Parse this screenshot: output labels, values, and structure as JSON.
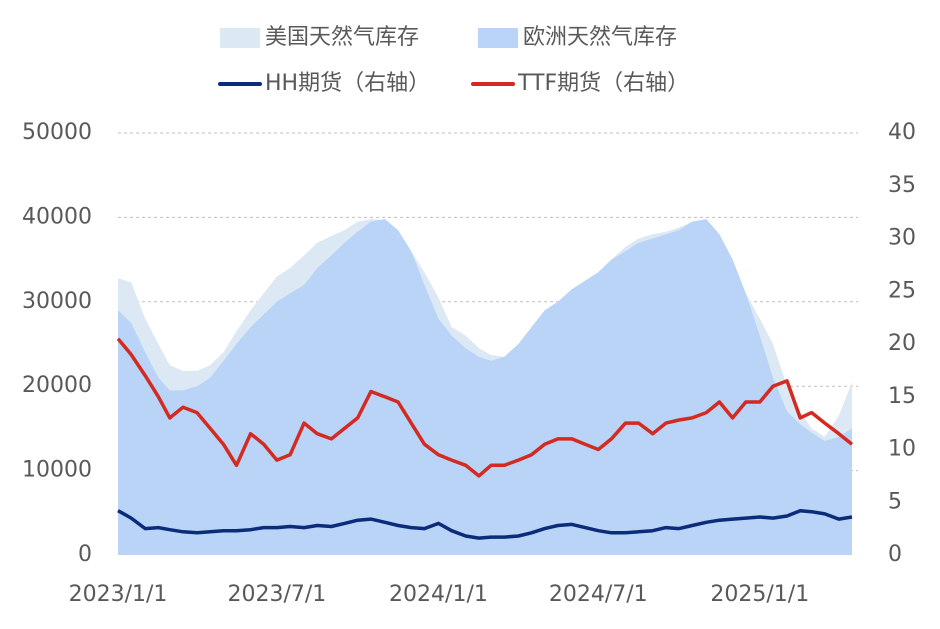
{
  "chart_data": {
    "type": "area-line",
    "x": [
      "2023/1/1",
      "2023/1/16",
      "2023/2/1",
      "2023/2/16",
      "2023/3/1",
      "2023/3/16",
      "2023/4/1",
      "2023/4/16",
      "2023/5/1",
      "2023/5/16",
      "2023/6/1",
      "2023/6/16",
      "2023/7/1",
      "2023/7/16",
      "2023/8/1",
      "2023/8/16",
      "2023/9/1",
      "2023/9/16",
      "2023/10/1",
      "2023/10/16",
      "2023/11/1",
      "2023/11/16",
      "2023/12/1",
      "2023/12/16",
      "2024/1/1",
      "2024/1/16",
      "2024/2/1",
      "2024/2/16",
      "2024/3/1",
      "2024/3/16",
      "2024/4/1",
      "2024/4/16",
      "2024/5/1",
      "2024/5/16",
      "2024/6/1",
      "2024/6/16",
      "2024/7/1",
      "2024/7/16",
      "2024/8/1",
      "2024/8/16",
      "2024/9/1",
      "2024/9/16",
      "2024/10/1",
      "2024/10/16",
      "2024/11/1",
      "2024/11/16",
      "2024/12/1",
      "2024/12/16",
      "2025/1/1",
      "2025/1/16",
      "2025/2/1",
      "2025/2/16",
      "2025/3/1",
      "2025/3/16",
      "2025/4/1",
      "2025/4/16"
    ],
    "xticks": [
      "2023/1/1",
      "2023/7/1",
      "2024/1/1",
      "2024/7/1",
      "2025/1/1"
    ],
    "ylim": [
      0,
      50000
    ],
    "yticks": [
      0,
      10000,
      20000,
      30000,
      40000,
      50000
    ],
    "y2lim": [
      0,
      40
    ],
    "y2ticks": [
      0,
      5,
      10,
      15,
      20,
      25,
      30,
      35,
      40
    ],
    "grid": true,
    "series": [
      {
        "name": "美国天然气库存",
        "kind": "area",
        "color": "#dde8f5",
        "values": [
          32800,
          32300,
          28000,
          25000,
          22500,
          21800,
          21800,
          22500,
          24000,
          26500,
          29000,
          31000,
          33000,
          34000,
          35500,
          37000,
          37800,
          38500,
          39500,
          39800,
          39700,
          38500,
          36000,
          33500,
          30500,
          27000,
          26000,
          24500,
          23700,
          23500,
          24500,
          26000,
          28000,
          29500,
          31000,
          32500,
          33500,
          35000,
          36500,
          37500,
          38000,
          38300,
          38800,
          39500,
          39500,
          38000,
          35000,
          31000,
          28000,
          25000,
          20000,
          17000,
          15000,
          14000,
          16500,
          20500
        ]
      },
      {
        "name": "欧洲天然气库存",
        "kind": "area",
        "color": "#b9d4f6",
        "values": [
          29000,
          27500,
          24000,
          21000,
          19500,
          19500,
          20000,
          21000,
          23000,
          25000,
          27000,
          28500,
          30000,
          31000,
          32000,
          34000,
          35500,
          37000,
          38300,
          39500,
          39800,
          38500,
          36000,
          32000,
          28000,
          26000,
          24500,
          23500,
          23000,
          23500,
          25000,
          27000,
          29000,
          30000,
          31500,
          32500,
          33500,
          35000,
          36000,
          37000,
          37500,
          38000,
          38500,
          39500,
          39800,
          38000,
          35000,
          31000,
          26000,
          21000,
          17000,
          15500,
          14500,
          13500,
          14000,
          15000
        ]
      },
      {
        "name": "HH期货（右轴）",
        "kind": "line",
        "axis": "y2",
        "color": "#0b2c7a",
        "values": [
          4.2,
          3.5,
          2.5,
          2.6,
          2.4,
          2.2,
          2.1,
          2.2,
          2.3,
          2.3,
          2.4,
          2.6,
          2.6,
          2.7,
          2.6,
          2.8,
          2.7,
          3.0,
          3.3,
          3.4,
          3.1,
          2.8,
          2.6,
          2.5,
          3.0,
          2.3,
          1.8,
          1.6,
          1.7,
          1.7,
          1.8,
          2.1,
          2.5,
          2.8,
          2.9,
          2.6,
          2.3,
          2.1,
          2.1,
          2.2,
          2.3,
          2.6,
          2.5,
          2.8,
          3.1,
          3.3,
          3.4,
          3.5,
          3.6,
          3.5,
          3.7,
          4.2,
          4.1,
          3.9,
          3.4,
          3.6
        ]
      },
      {
        "name": "TTF期货（右轴）",
        "kind": "line",
        "axis": "y2",
        "color": "#d42a21",
        "values": [
          20.5,
          19,
          17,
          15,
          13,
          14,
          13.5,
          12,
          10.5,
          8.5,
          11.5,
          10.5,
          9,
          9.5,
          12.5,
          11.5,
          11,
          12,
          13,
          15.5,
          15,
          14.5,
          12.5,
          10.5,
          9.5,
          9,
          8.5,
          7.5,
          8.5,
          8.5,
          9,
          9.5,
          10.5,
          11,
          11,
          10.5,
          10,
          11,
          12.5,
          12.5,
          11.5,
          12.5,
          12.8,
          13,
          13.5,
          14.5,
          13,
          14.5,
          14.5,
          16,
          16.5,
          13,
          13.5,
          12.5,
          11.5,
          10.5
        ]
      }
    ]
  }
}
